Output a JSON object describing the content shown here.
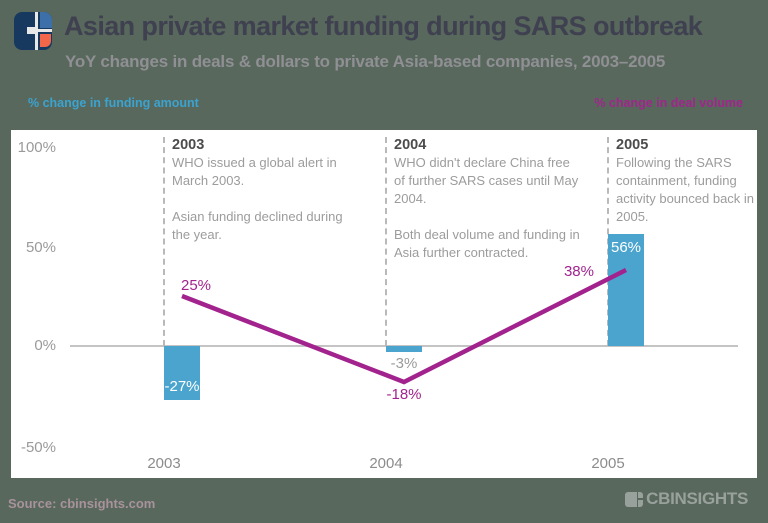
{
  "header": {
    "title": "Asian private market funding during SARS outbreak",
    "subtitle": "YoY changes in deals & dollars to private Asia-based companies, 2003–2005"
  },
  "legend": {
    "funding_label": "% change in funding amount",
    "deal_volume_label": "% change in deal volume"
  },
  "chart_data": {
    "type": "bar",
    "title": "Asian private market funding during SARS outbreak",
    "subtitle": "YoY changes in deals & dollars to private Asia-based companies, 2003–2005",
    "categories": [
      "2003",
      "2004",
      "2005"
    ],
    "series": [
      {
        "name": "% change in funding amount",
        "type": "bar",
        "color": "#4aa4cd",
        "values": [
          -27,
          -3,
          56
        ],
        "labels": [
          "-27%",
          "-3%",
          "56%"
        ]
      },
      {
        "name": "% change in deal volume",
        "type": "line",
        "color": "#a2238e",
        "values": [
          25,
          -18,
          38
        ],
        "labels": [
          "25%",
          "-18%",
          "38%"
        ]
      }
    ],
    "y_ticks": [
      "100%",
      "50%",
      "0%",
      "-50%"
    ],
    "ylim": [
      -50,
      100
    ],
    "grid": "zero-line-only",
    "legend_position": "top"
  },
  "annotations": [
    {
      "year": "2003",
      "para1": "WHO issued a global alert in March 2003.",
      "para2": "Asian funding declined during the year."
    },
    {
      "year": "2004",
      "para1": "WHO didn't declare China free of further SARS cases until May 2004.",
      "para2": "Both deal volume and funding in Asia further contracted."
    },
    {
      "year": "2005",
      "para1": "Following the SARS containment, funding activity bounced back in 2005.",
      "para2": ""
    }
  ],
  "footer": {
    "source": "Source: cbinsights.com",
    "brand": "CBINSIGHTS"
  },
  "colors": {
    "background": "#58685c",
    "panel": "#ffffff",
    "bar": "#4aa4cd",
    "line": "#a2238e",
    "title_text": "#3f4050",
    "subtitle_text": "#8f8f94",
    "axis_text": "#9a9a9a",
    "annotation_text": "#9c9c9c",
    "legend_funding": "#3ba3d0",
    "legend_deals": "#a1258c",
    "source_text": "#a8929c",
    "logo_navy": "#17395f",
    "logo_blue": "#3d6fa8",
    "logo_orange": "#f26649"
  }
}
